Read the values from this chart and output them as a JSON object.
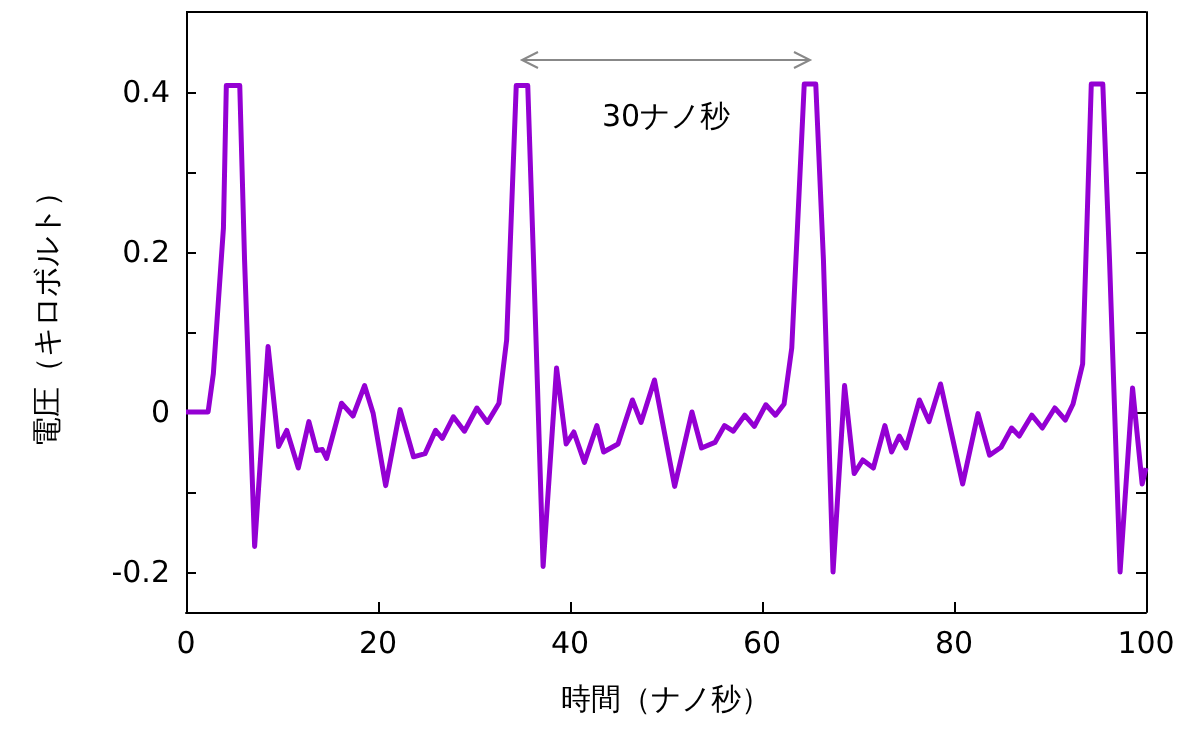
{
  "chart_data": {
    "type": "line",
    "xlabel": "時間（ナノ秒）",
    "ylabel": "電圧（キロボルト）",
    "annotations": [
      "30ナノ秒"
    ],
    "x": [
      0,
      2.3,
      2.85,
      3.9,
      4.2,
      5.6,
      6.1,
      7.15,
      8.55,
      9.65,
      10.5,
      11.7,
      12.8,
      13.6,
      14.2,
      14.65,
      16.2,
      17.4,
      18.6,
      19.5,
      20.8,
      22.3,
      23.7,
      24.9,
      26.0,
      26.7,
      27.85,
      29.0,
      30.3,
      31.4,
      32.6,
      33.4,
      34.4,
      35.6,
      36.2,
      37.2,
      38.6,
      39.6,
      40.4,
      41.5,
      42.8,
      43.5,
      45,
      46.5,
      47.4,
      48.8,
      50.9,
      52.7,
      53.7,
      55.1,
      56.1,
      57,
      58.2,
      59.2,
      60.4,
      61.4,
      62.3,
      63.1,
      64.4,
      65.6,
      66.4,
      67.4,
      68.6,
      69.6,
      70.5,
      71.6,
      72.8,
      73.5,
      74.3,
      75,
      76.4,
      77.4,
      78.6,
      80.9,
      82.5,
      83.7,
      84.9,
      86,
      86.8,
      88.1,
      89.2,
      90.5,
      91.6,
      92.4,
      93.4,
      94.3,
      95.5,
      96.2,
      97.3,
      98.6,
      99.6,
      100
    ],
    "series": [
      {
        "color": "#9400d3",
        "values": [
          0,
          0,
          0.048,
          0.23,
          0.408,
          0.408,
          0.19,
          -0.168,
          0.082,
          -0.043,
          -0.023,
          -0.07,
          -0.012,
          -0.048,
          -0.047,
          -0.058,
          0.011,
          -0.005,
          0.033,
          -0.002,
          -0.092,
          0.003,
          -0.056,
          -0.052,
          -0.023,
          -0.033,
          -0.006,
          -0.024,
          0.005,
          -0.013,
          0.011,
          0.09,
          0.408,
          0.408,
          0.19,
          -0.193,
          0.055,
          -0.04,
          -0.025,
          -0.063,
          -0.017,
          -0.05,
          -0.04,
          0.015,
          -0.013,
          0.04,
          -0.093,
          0,
          -0.045,
          -0.038,
          -0.017,
          -0.024,
          -0.004,
          -0.018,
          0.009,
          -0.004,
          0.01,
          0.08,
          0.41,
          0.41,
          0.19,
          -0.2,
          0.033,
          -0.077,
          -0.06,
          -0.07,
          -0.017,
          -0.05,
          -0.03,
          -0.045,
          0.015,
          -0.012,
          0.035,
          -0.09,
          -0.002,
          -0.054,
          -0.044,
          -0.02,
          -0.03,
          -0.004,
          -0.02,
          0.005,
          -0.01,
          0.01,
          0.06,
          0.41,
          0.41,
          0.19,
          -0.2,
          0.03,
          -0.09,
          -0.07
        ]
      }
    ],
    "xlim": [
      0,
      100
    ],
    "xticks": [
      0,
      20,
      40,
      60,
      80,
      100
    ],
    "ylim": [
      -0.25,
      0.5
    ],
    "yticks": [
      {
        "value": -0.2,
        "label": "-0.2"
      },
      {
        "value": -0.1,
        "label": null
      },
      {
        "value": 0,
        "label": "0"
      },
      {
        "value": 0.1,
        "label": null
      },
      {
        "value": 0.2,
        "label": "0.2"
      },
      {
        "value": 0.3,
        "label": null
      },
      {
        "value": 0.4,
        "label": "0.4"
      }
    ],
    "grid": false,
    "marker": "none",
    "line_style": "solid"
  }
}
